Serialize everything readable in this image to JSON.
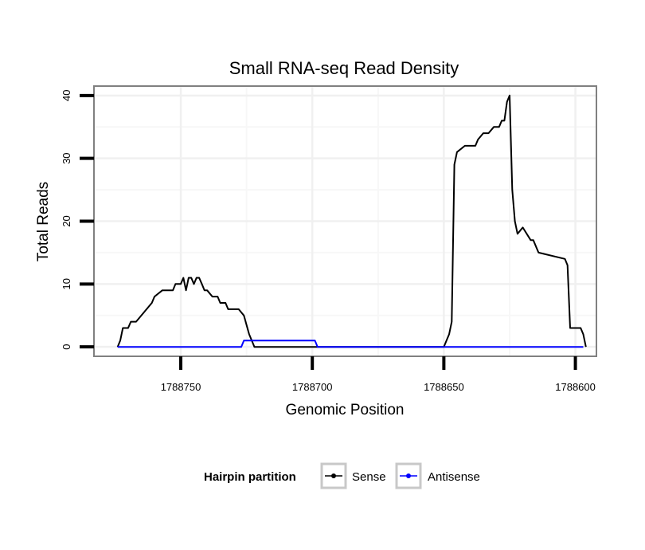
{
  "chart_data": {
    "type": "line",
    "title": "Small RNA-seq Read Density",
    "xlabel": "Genomic Position",
    "ylabel": "Total Reads",
    "x_reversed": true,
    "xlim": [
      1788783,
      1788592
    ],
    "ylim": [
      -1.5,
      41.5
    ],
    "x_ticks": [
      1788750,
      1788700,
      1788650,
      1788600
    ],
    "x_tick_labels": [
      "1788750",
      "1788700",
      "1788650",
      "1788600"
    ],
    "y_ticks": [
      0,
      10,
      20,
      30,
      40
    ],
    "y_tick_labels": [
      "0",
      "10",
      "20",
      "30",
      "40"
    ],
    "grid": true,
    "legend": {
      "title": "Hairpin partition",
      "position": "bottom",
      "entries": [
        "Sense",
        "Antisense"
      ]
    },
    "series": [
      {
        "name": "Sense",
        "color": "#000000",
        "x": [
          1788774,
          1788773,
          1788772,
          1788770,
          1788769,
          1788767,
          1788763,
          1788761,
          1788760,
          1788757,
          1788753,
          1788752,
          1788750,
          1788749,
          1788748,
          1788747,
          1788746,
          1788745,
          1788744,
          1788743,
          1788742,
          1788741,
          1788740,
          1788738,
          1788736,
          1788735,
          1788733,
          1788732,
          1788730,
          1788728,
          1788726,
          1788724,
          1788723,
          1788722,
          1788721,
          1788719,
          1788700,
          1788650,
          1788649,
          1788648,
          1788647,
          1788646,
          1788645,
          1788642,
          1788638,
          1788637,
          1788635,
          1788633,
          1788631,
          1788630,
          1788629,
          1788628,
          1788627,
          1788626,
          1788625,
          1788624,
          1788623,
          1788622,
          1788620,
          1788617,
          1788616,
          1788614,
          1788604,
          1788603,
          1788602,
          1788598,
          1788597,
          1788596
        ],
        "y": [
          0,
          1,
          3,
          3,
          4,
          4,
          6,
          7,
          8,
          9,
          9,
          10,
          10,
          11,
          9,
          11,
          11,
          10,
          11,
          11,
          10,
          9,
          9,
          8,
          8,
          7,
          7,
          6,
          6,
          6,
          5,
          2,
          1,
          0,
          0,
          0,
          0,
          0,
          1,
          2,
          4,
          29,
          31,
          32,
          32,
          33,
          34,
          34,
          35,
          35,
          35,
          36,
          36,
          39,
          40,
          25,
          20,
          18,
          19,
          17,
          17,
          15,
          14,
          13,
          3,
          3,
          2,
          0
        ]
      },
      {
        "name": "Antisense",
        "color": "#0000ff",
        "x": [
          1788774,
          1788727,
          1788726,
          1788699,
          1788698,
          1788597
        ],
        "y": [
          0,
          0,
          1,
          1,
          0,
          0
        ]
      }
    ]
  }
}
